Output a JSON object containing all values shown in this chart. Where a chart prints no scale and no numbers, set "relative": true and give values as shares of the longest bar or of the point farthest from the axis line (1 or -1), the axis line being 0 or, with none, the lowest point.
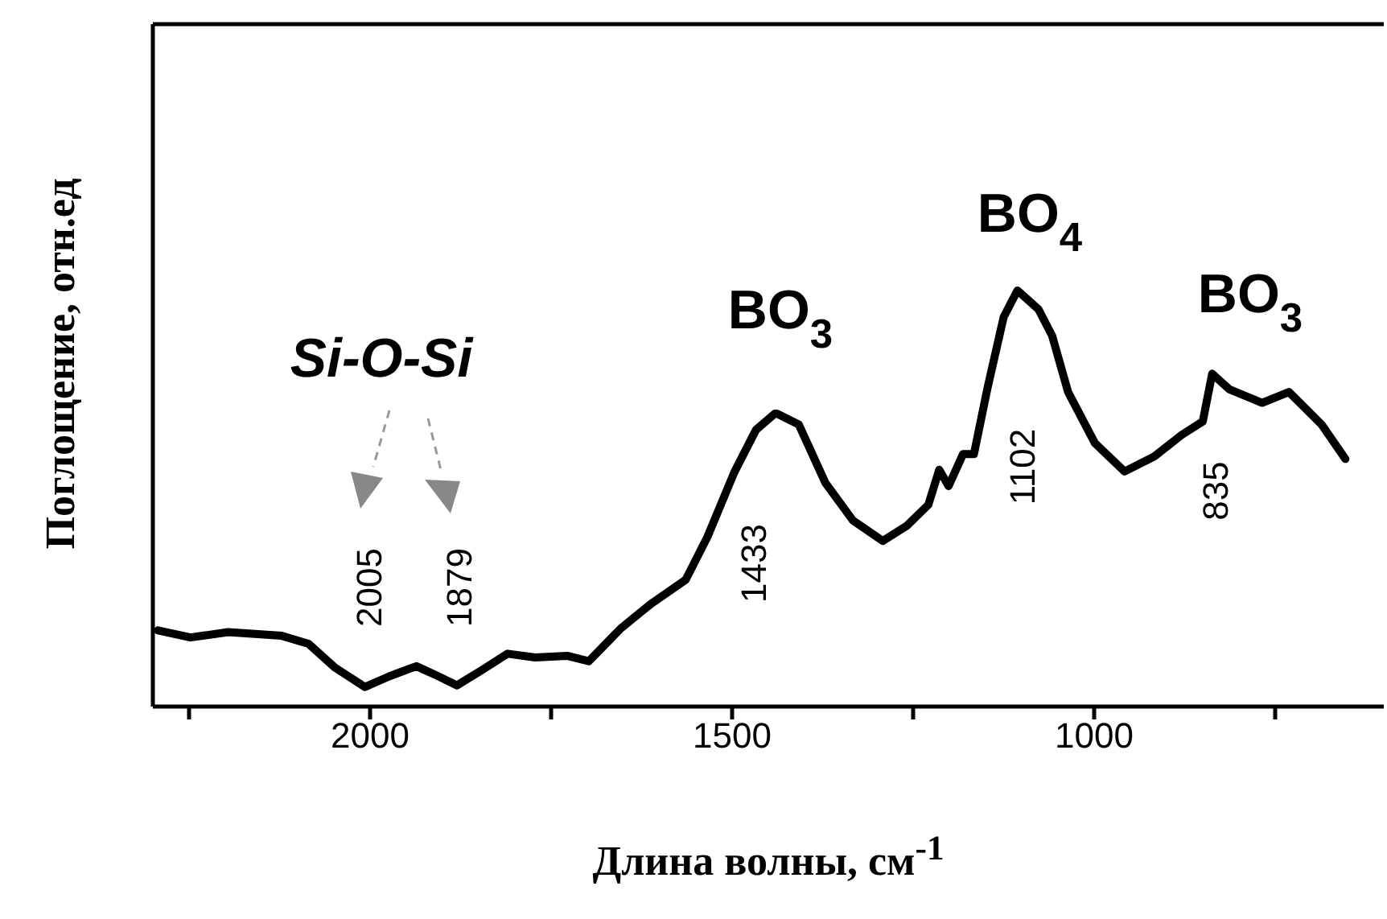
{
  "chart_data": {
    "type": "line",
    "relative": true,
    "xlabel": "Длина волны, см$^{-1}$",
    "ylabel": "Поглощение, отн.ед",
    "xlim": [
      2300,
      600
    ],
    "xticks": [
      {
        "value": 2250,
        "label": null
      },
      2000,
      {
        "value": 1750,
        "label": null
      },
      1500,
      {
        "value": 1250,
        "label": null
      },
      1000,
      {
        "value": 750,
        "label": null
      }
    ],
    "marker": "none",
    "line_style": "solid",
    "series": [
      {
        "color": "#000000",
        "x": [
          2293,
          2248,
          2196,
          2122,
          2085,
          2048,
          2007,
          1973,
          1936,
          1906,
          1880,
          1847,
          1810,
          1772,
          1728,
          1698,
          1653,
          1612,
          1564,
          1534,
          1497,
          1467,
          1441,
          1438,
          1408,
          1371,
          1333,
          1292,
          1259,
          1229,
          1214,
          1201,
          1181,
          1166,
          1147,
          1125,
          1106,
          1077,
          1058,
          1036,
          999,
          958,
          917,
          879,
          850,
          837,
          813,
          768,
          731,
          686,
          653
        ],
        "values": [
          0.183,
          0.166,
          0.179,
          0.17,
          0.151,
          0.093,
          0.047,
          0.073,
          0.097,
          0.073,
          0.051,
          0.086,
          0.127,
          0.118,
          0.122,
          0.109,
          0.189,
          0.247,
          0.305,
          0.408,
          0.563,
          0.665,
          0.704,
          0.704,
          0.678,
          0.537,
          0.447,
          0.398,
          0.434,
          0.485,
          0.569,
          0.53,
          0.607,
          0.607,
          0.768,
          0.936,
          1.0,
          0.955,
          0.891,
          0.756,
          0.633,
          0.565,
          0.601,
          0.653,
          0.685,
          0.8,
          0.762,
          0.73,
          0.756,
          0.678,
          0.595
        ]
      }
    ],
    "annotations": [
      "Si-O-Si",
      "2005",
      "1879",
      "BO$_{3}$",
      "1433",
      "BO$_{4}$",
      "1102",
      "BO$_{3}$",
      "835"
    ]
  }
}
